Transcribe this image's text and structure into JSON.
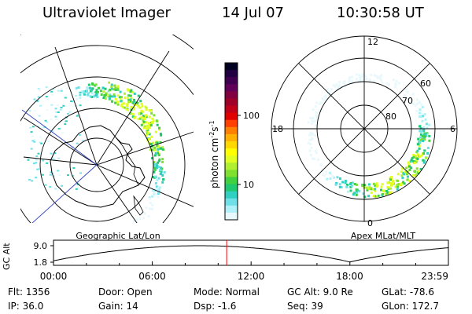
{
  "header": {
    "instrument": "Ultraviolet Imager",
    "date": "14 Jul 07",
    "time": "10:30:58 UT"
  },
  "colorbar": {
    "label_main": "photon cm",
    "label_sup1": "-2",
    "label_mid": "s",
    "label_sup2": "-1",
    "ticks": [
      {
        "value": "100"
      },
      {
        "value": "10"
      }
    ],
    "colors": [
      "#000020",
      "#200040",
      "#400050",
      "#600058",
      "#800040",
      "#a00028",
      "#c00018",
      "#e00000",
      "#ff4000",
      "#ff8000",
      "#ffb000",
      "#ffd800",
      "#ffff00",
      "#e0ff20",
      "#b0f030",
      "#80e030",
      "#40d040",
      "#20c870",
      "#30d0c0",
      "#70e0e8",
      "#b0f0f8",
      "#e8f8fc"
    ]
  },
  "geo_map": {
    "label": "Geographic Lat/Lon"
  },
  "apex_map": {
    "label": "Apex MLat/MLT",
    "mlt_labels": {
      "top": "12",
      "left": "18",
      "right": "6",
      "bottom": "0"
    },
    "lat_labels": [
      "60",
      "70",
      "80"
    ]
  },
  "orbit_plot": {
    "ylabel": "GC Alt",
    "yticks": [
      "9.0",
      "1.8"
    ],
    "xticks": [
      "00:00",
      "06:00",
      "12:00",
      "18:00",
      "23:59"
    ],
    "marker_hour": 10.516,
    "marker_color": "#ff0000"
  },
  "info": [
    [
      {
        "label": "Flt:",
        "value": "1356"
      },
      {
        "label": "Door:",
        "value": "Open"
      },
      {
        "label": "Mode:",
        "value": "Normal"
      },
      {
        "label": "GC Alt:",
        "value": "9.0 Re"
      },
      {
        "label": "GLat:",
        "value": "-78.6"
      }
    ],
    [
      {
        "label": "IP:",
        "value": "36.0"
      },
      {
        "label": "Gain:",
        "value": "14"
      },
      {
        "label": "Dsp:",
        "value": "-1.6"
      },
      {
        "label": "Seq:",
        "value": "39"
      },
      {
        "label": "GLon:",
        "value": "172.7"
      }
    ]
  ]
}
